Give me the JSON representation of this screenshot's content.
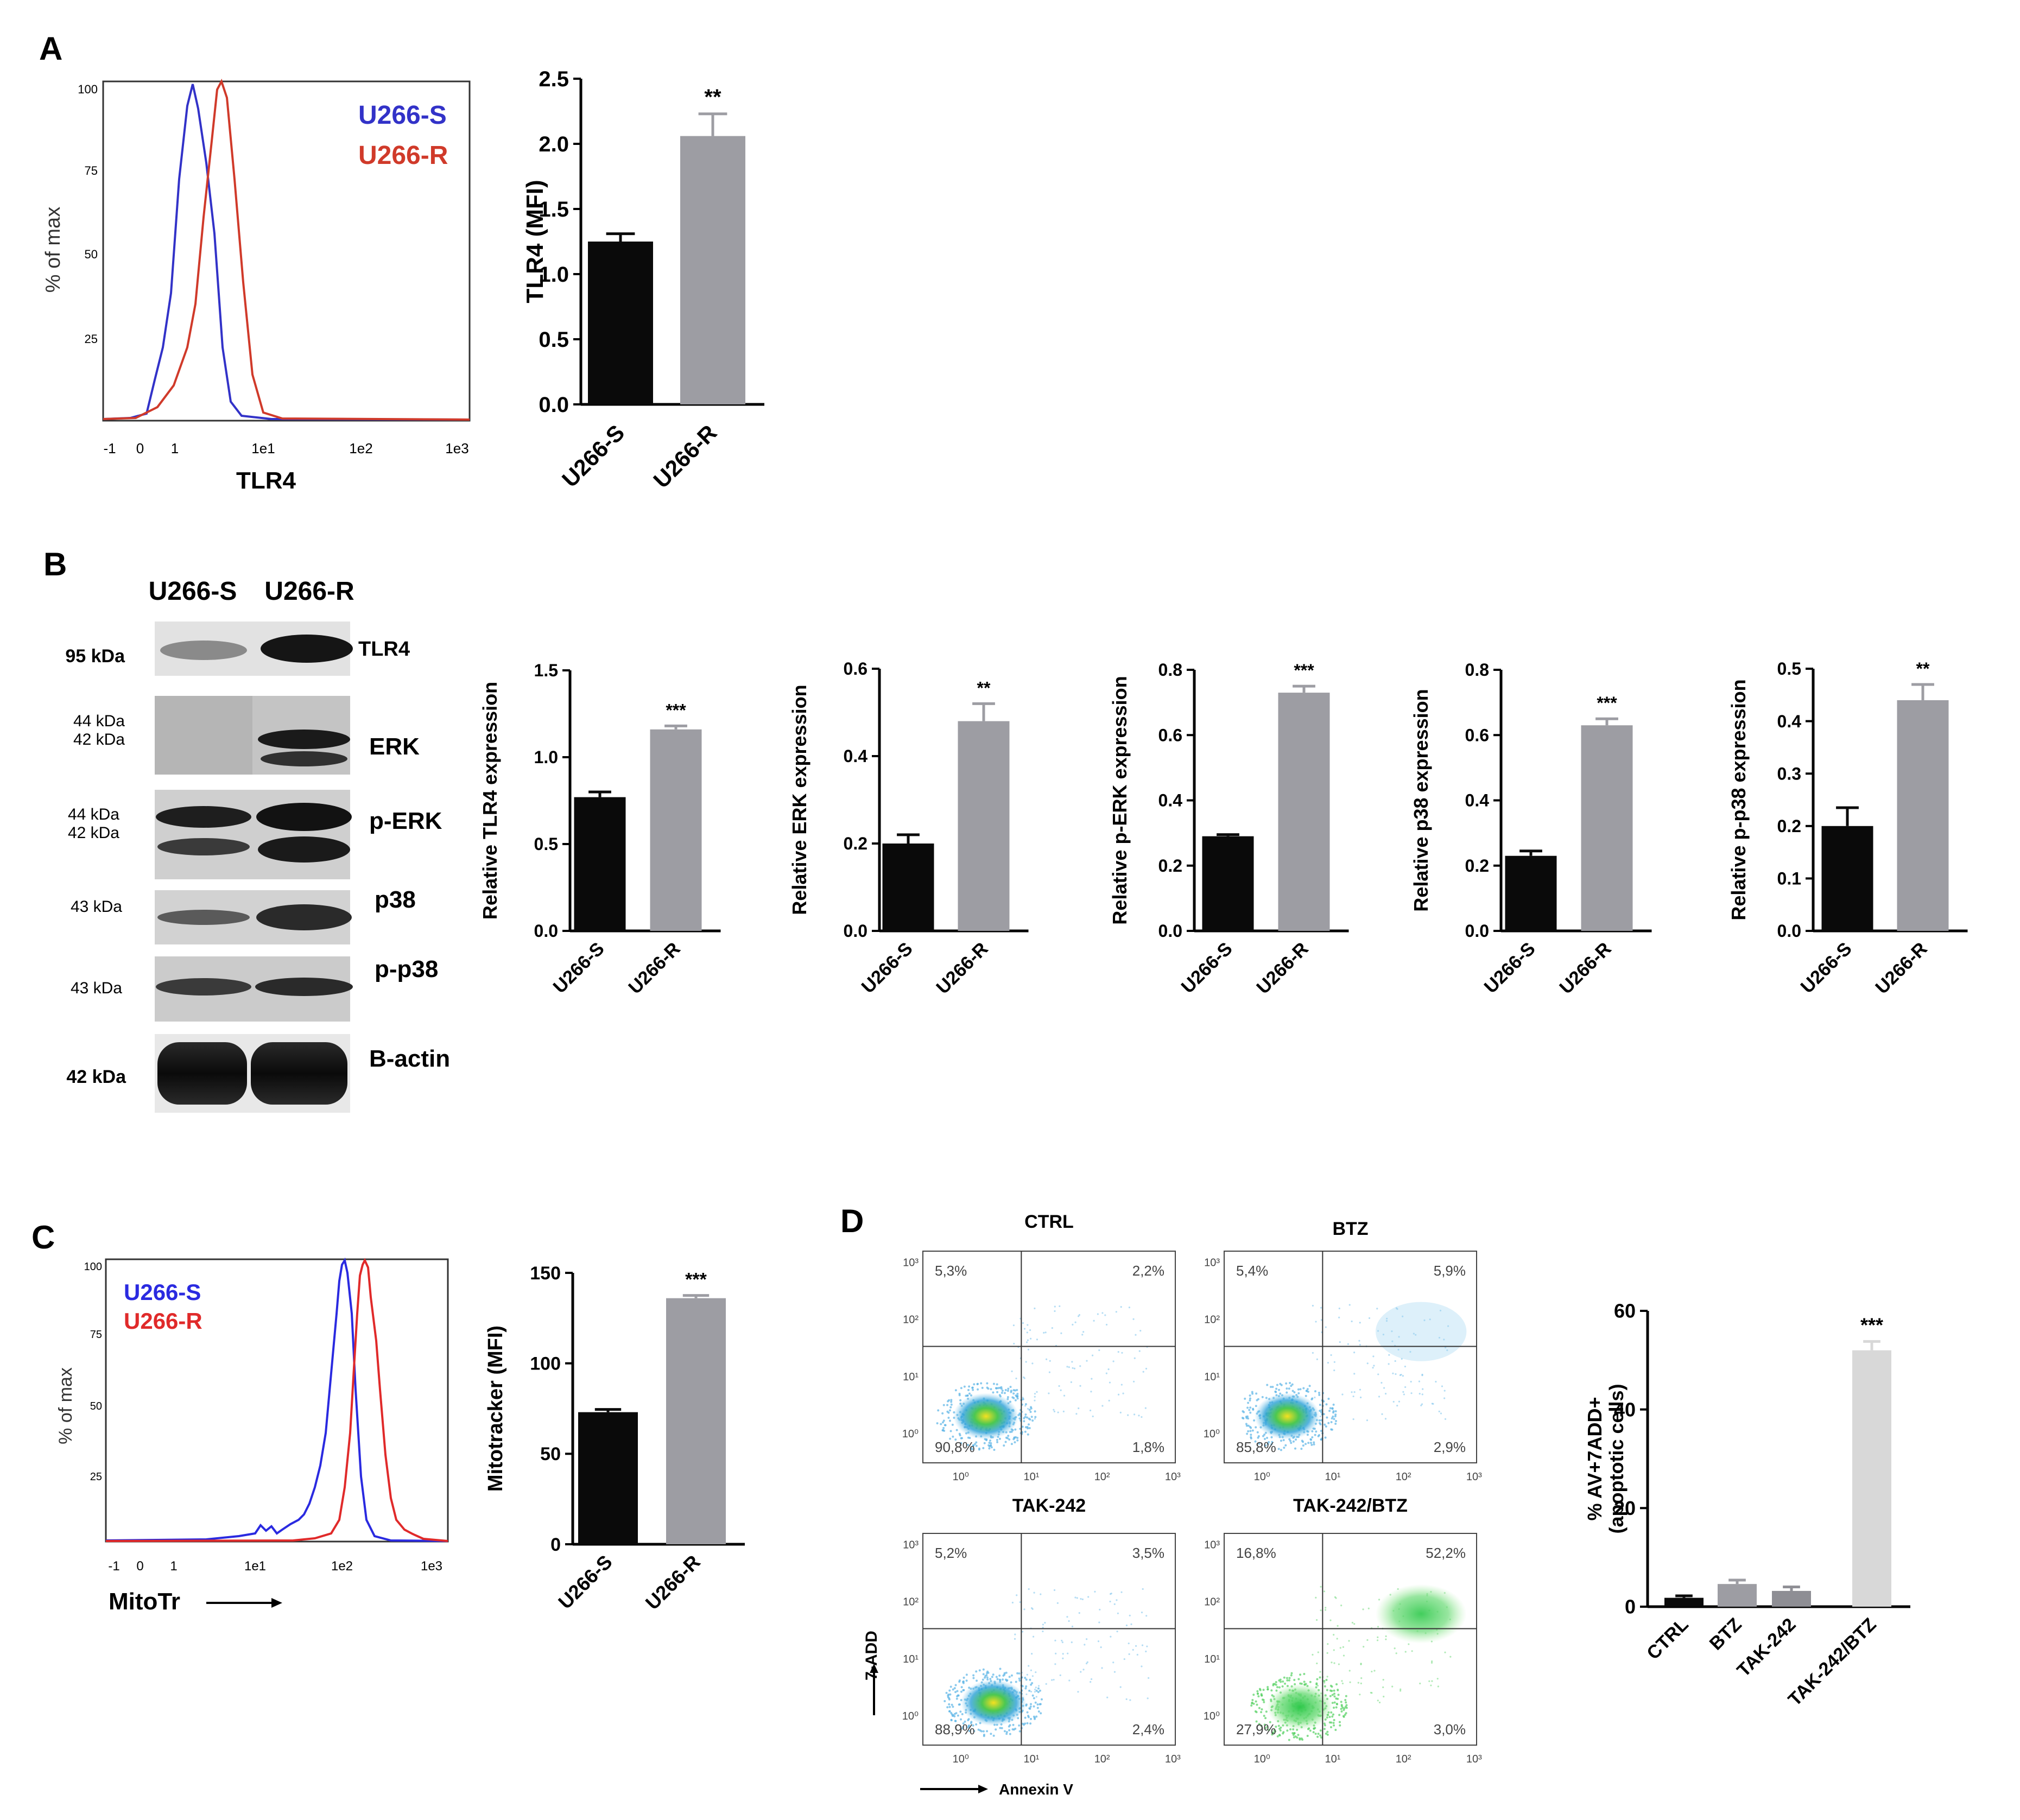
{
  "panels": {
    "A": "A",
    "B": "B",
    "C": "C",
    "D": "D"
  },
  "colors": {
    "s_line": "#3232c8",
    "r_line": "#d03a2a",
    "black_bar": "#0a0a0a",
    "grey_bar": "#9d9da3",
    "lightgrey_bar": "#d8d8d8"
  },
  "panelA": {
    "histogram": {
      "ylabel": "% of max",
      "xlabel": "TLR4",
      "yticks": [
        "100",
        "75",
        "50",
        "25"
      ],
      "xticks": [
        "-1",
        "0",
        "1",
        "1e1",
        "1e2",
        "1e3"
      ],
      "legend": [
        "U266-S",
        "U266-R"
      ]
    }
  },
  "panelB": {
    "lanes": [
      "U266-S",
      "U266-R"
    ],
    "blots": [
      {
        "kda": "95 kDa",
        "kda2": "",
        "label": "TLR4"
      },
      {
        "kda": "44 kDa",
        "kda2": "42 kDa",
        "label": "ERK"
      },
      {
        "kda": "44 kDa",
        "kda2": "42 kDa",
        "label": "p-ERK"
      },
      {
        "kda": "43 kDa",
        "kda2": "",
        "label": "p38"
      },
      {
        "kda": "43 kDa",
        "kda2": "",
        "label": "p-p38"
      },
      {
        "kda": "42 kDa",
        "kda2": "",
        "label": "B-actin"
      }
    ]
  },
  "panelC": {
    "histogram": {
      "ylabel": "% of max",
      "xlabel": "MitoTr",
      "yticks": [
        "100",
        "75",
        "50",
        "25"
      ],
      "xticks": [
        "-1",
        "0",
        "1",
        "1e1",
        "1e2",
        "1e3"
      ],
      "legend": [
        "U266-S",
        "U266-R"
      ]
    }
  },
  "panelD": {
    "dotplots": [
      {
        "title": "CTRL",
        "ul": "5,3%",
        "ur": "2,2%",
        "ll": "90,8%",
        "lr": "1,8%"
      },
      {
        "title": "BTZ",
        "ul": "5,4%",
        "ur": "5,9%",
        "ll": "85,8%",
        "lr": "2,9%"
      },
      {
        "title": "TAK-242",
        "ul": "5,2%",
        "ur": "3,5%",
        "ll": "88,9%",
        "lr": "2,4%"
      },
      {
        "title": "TAK-242/BTZ",
        "ul": "16,8%",
        "ur": "52,2%",
        "ll": "27,9%",
        "lr": "3,0%"
      }
    ],
    "x_axis_title": "Annexin V",
    "y_axis_title": "7-ADD",
    "log_ticks": [
      "10⁰",
      "10¹",
      "10²",
      "10³"
    ]
  },
  "chart_data": [
    {
      "id": "A_bar",
      "type": "bar",
      "categories": [
        "U266-S",
        "U266-R"
      ],
      "values": [
        1.25,
        2.06
      ],
      "errors": [
        0.06,
        0.17
      ],
      "significance": [
        "",
        "**"
      ],
      "title": "",
      "xlabel": "",
      "ylabel": "TLR4 (MFI)",
      "ylim": [
        0,
        2.5
      ],
      "yticks": [
        "0.0",
        "0.5",
        "1.0",
        "1.5",
        "2.0",
        "2.5"
      ]
    },
    {
      "id": "B1",
      "type": "bar",
      "categories": [
        "U266-S",
        "U266-R"
      ],
      "values": [
        0.77,
        1.16
      ],
      "errors": [
        0.03,
        0.02
      ],
      "significance": [
        "",
        "***"
      ],
      "title": "",
      "xlabel": "",
      "ylabel": "Relative TLR4 expression",
      "ylim": [
        0,
        1.5
      ],
      "yticks": [
        "0.0",
        "0.5",
        "1.0",
        "1.5"
      ]
    },
    {
      "id": "B2",
      "type": "bar",
      "categories": [
        "U266-S",
        "U266-R"
      ],
      "values": [
        0.2,
        0.48
      ],
      "errors": [
        0.02,
        0.04
      ],
      "significance": [
        "",
        "**"
      ],
      "title": "",
      "xlabel": "",
      "ylabel": "Relative ERK expression",
      "ylim": [
        0,
        0.6
      ],
      "yticks": [
        "0.0",
        "0.2",
        "0.4",
        "0.6"
      ]
    },
    {
      "id": "B3",
      "type": "bar",
      "categories": [
        "U266-S",
        "U266-R"
      ],
      "values": [
        0.29,
        0.73
      ],
      "errors": [
        0.005,
        0.02
      ],
      "significance": [
        "",
        "***"
      ],
      "title": "",
      "xlabel": "",
      "ylabel": "Relative p-ERK expression",
      "ylim": [
        0,
        0.8
      ],
      "yticks": [
        "0.0",
        "0.2",
        "0.4",
        "0.6",
        "0.8"
      ]
    },
    {
      "id": "B4",
      "type": "bar",
      "categories": [
        "U266-S",
        "U266-R"
      ],
      "values": [
        0.23,
        0.63
      ],
      "errors": [
        0.015,
        0.02
      ],
      "significance": [
        "",
        "***"
      ],
      "title": "",
      "xlabel": "",
      "ylabel": "Relative p38 expression",
      "ylim": [
        0,
        0.8
      ],
      "yticks": [
        "0.0",
        "0.2",
        "0.4",
        "0.6",
        "0.8"
      ]
    },
    {
      "id": "B5",
      "type": "bar",
      "categories": [
        "U266-S",
        "U266-R"
      ],
      "values": [
        0.2,
        0.44
      ],
      "errors": [
        0.035,
        0.03
      ],
      "significance": [
        "",
        "**"
      ],
      "title": "",
      "xlabel": "",
      "ylabel": "Relative p-p38 expression",
      "ylim": [
        0,
        0.5
      ],
      "yticks": [
        "0.0",
        "0.1",
        "0.2",
        "0.3",
        "0.4",
        "0.5"
      ]
    },
    {
      "id": "C_bar",
      "type": "bar",
      "categories": [
        "U266-S",
        "U266-R"
      ],
      "values": [
        73,
        136
      ],
      "errors": [
        1.5,
        1.5
      ],
      "significance": [
        "",
        "***"
      ],
      "title": "",
      "xlabel": "",
      "ylabel": "Mitotracker (MFI)",
      "ylim": [
        0,
        150
      ],
      "yticks": [
        "0",
        "50",
        "100",
        "150"
      ]
    },
    {
      "id": "D_bar",
      "type": "bar",
      "categories": [
        "CTRL",
        "BTZ",
        "TAK-242",
        "TAK-242/BTZ"
      ],
      "values": [
        1.8,
        4.6,
        3.2,
        52
      ],
      "errors": [
        0.4,
        0.8,
        0.8,
        1.8
      ],
      "significance": [
        "",
        "",
        "",
        "***"
      ],
      "title": "",
      "xlabel": "",
      "ylabel": "% AV+7ADD+ (apoptotic cells)",
      "ylim": [
        0,
        60
      ],
      "yticks": [
        "0",
        "20",
        "40",
        "60"
      ]
    }
  ]
}
